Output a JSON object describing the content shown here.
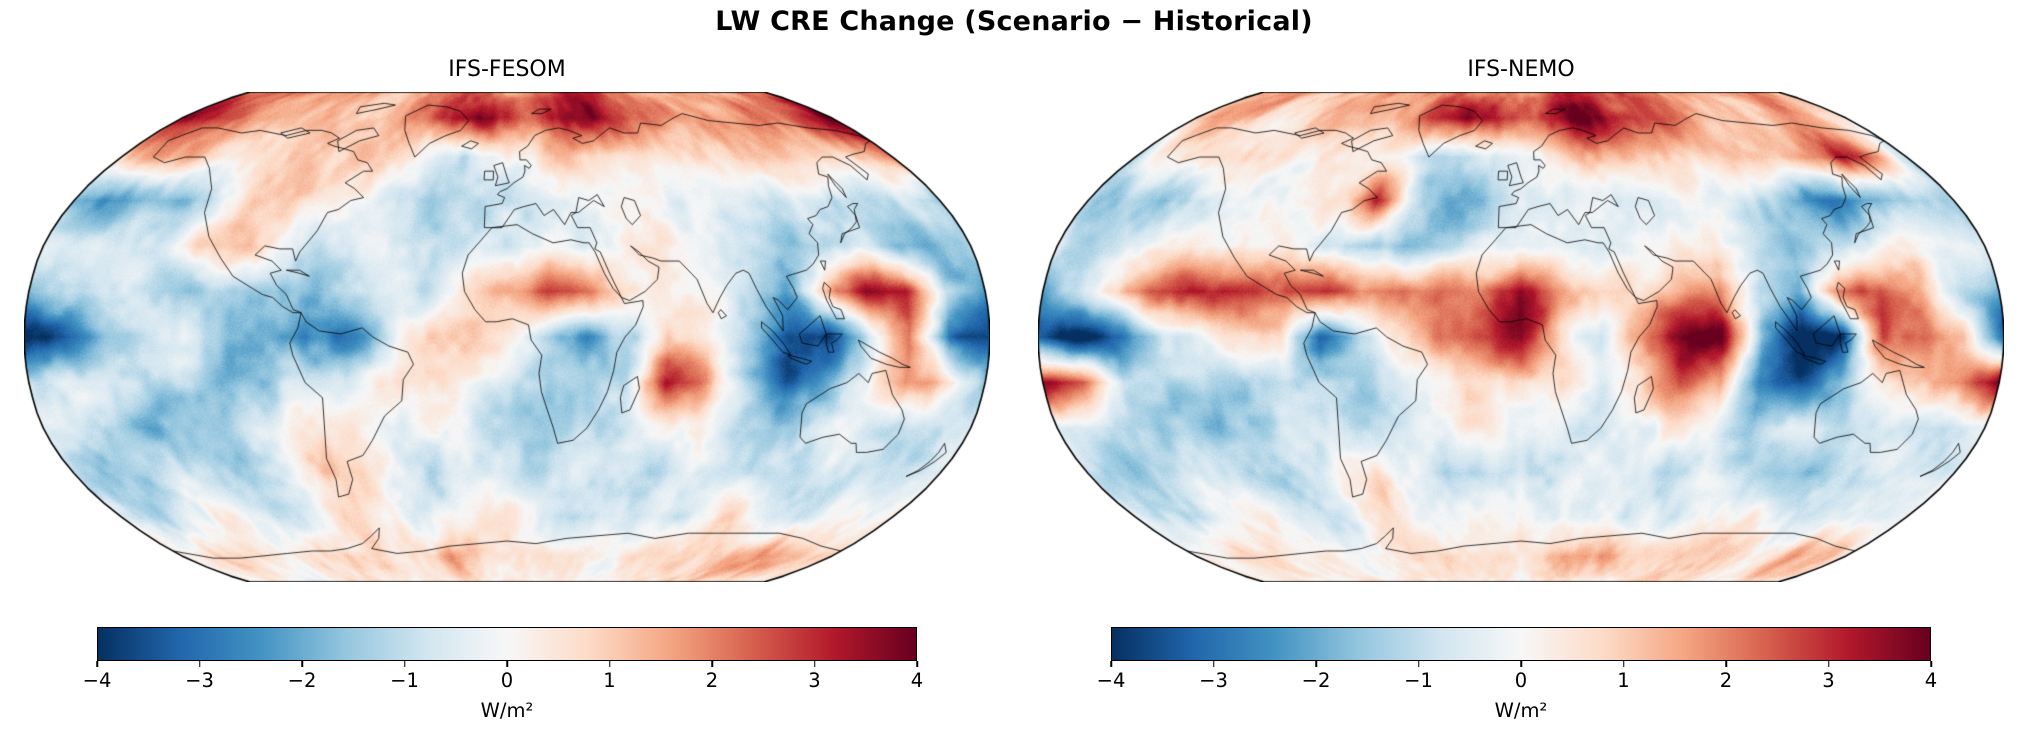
{
  "figure": {
    "title": "LW CRE Change (Scenario − Historical)",
    "panels": [
      {
        "title": "IFS-FESOM"
      },
      {
        "title": "IFS-NEMO"
      }
    ],
    "colorbar": {
      "unit": "W/m²",
      "vmin": -4,
      "vmax": 4,
      "ticks": [
        "−4",
        "−3",
        "−2",
        "−1",
        "0",
        "1",
        "2",
        "3",
        "4"
      ],
      "colormap": "RdBu_r",
      "colors": [
        "#053061",
        "#2166ac",
        "#4393c3",
        "#92c5de",
        "#d1e5f0",
        "#f7f7f7",
        "#fddbc7",
        "#f4a582",
        "#d6604d",
        "#b2182b",
        "#67001f"
      ]
    }
  },
  "chart_data": {
    "type": "heatmap",
    "subtype": "global-map",
    "projection": "robinson",
    "title": "LW CRE Change (Scenario − Historical)",
    "units": "W/m²",
    "vmin": -4,
    "vmax": 4,
    "colorbar_ticks": [
      -4,
      -3,
      -2,
      -1,
      0,
      1,
      2,
      3,
      4
    ],
    "colorbar_label": "W/m²",
    "colormap": "RdBu_r",
    "grid_lats": [
      90,
      75,
      60,
      45,
      30,
      15,
      0,
      -15,
      -30,
      -45,
      -60,
      -75,
      -90
    ],
    "grid_lons": [
      -180,
      -165,
      -150,
      -135,
      -120,
      -105,
      -90,
      -75,
      -60,
      -45,
      -30,
      -15,
      0,
      15,
      30,
      45,
      60,
      75,
      90,
      105,
      120,
      135,
      150,
      165,
      180
    ],
    "series": [
      {
        "name": "IFS-FESOM",
        "values": [
          [
            2,
            2,
            2,
            2,
            1.5,
            1.5,
            1.5,
            1.2,
            1.5,
            2,
            2.5,
            2,
            1.5,
            2,
            2.5,
            3,
            2.5,
            2,
            1.5,
            1.5,
            1.5,
            1.5,
            1.5,
            2,
            2
          ],
          [
            3.5,
            3.5,
            3,
            2,
            1.5,
            1.2,
            1,
            1,
            1.5,
            2,
            3.5,
            4,
            2.5,
            2.5,
            3.5,
            3.5,
            2.5,
            2,
            1.5,
            1.5,
            1.5,
            2,
            2,
            2.5,
            3.5
          ],
          [
            1.5,
            2,
            2,
            1,
            0.5,
            0.5,
            0.8,
            0.8,
            0.5,
            0,
            -1,
            -0.5,
            0.3,
            0.5,
            1,
            1,
            1,
            0.8,
            0.8,
            1,
            1,
            0.5,
            1,
            1.5,
            1.5
          ],
          [
            -1.5,
            -2,
            -1.5,
            -1.5,
            -0.5,
            0.8,
            0.8,
            0.5,
            -0.5,
            -1.5,
            -1.5,
            -0.8,
            -0.5,
            -0.5,
            -0.3,
            0.3,
            0.5,
            0.3,
            0.2,
            -0.5,
            -1,
            -1.5,
            -1,
            -0.5,
            -1.5
          ],
          [
            -1,
            -1,
            -0.8,
            -0.5,
            0.5,
            1,
            0.5,
            -0.5,
            -1,
            -0.8,
            -0.5,
            -0.5,
            -0.8,
            -0.5,
            -0.8,
            0.3,
            0.5,
            0.3,
            -0.5,
            -1,
            -1.5,
            -1,
            -1.5,
            -2,
            -1
          ],
          [
            -2,
            -1,
            -0.8,
            -1,
            -1.5,
            -1,
            -1.5,
            -1.5,
            -1,
            -0.5,
            -0.5,
            0.5,
            1,
            2.5,
            2,
            0.8,
            0.5,
            0.3,
            -0.5,
            -1.5,
            1,
            3.5,
            3,
            -1,
            -2
          ],
          [
            -4,
            -3.5,
            -2,
            -1,
            -0.5,
            -1,
            -1.5,
            -3,
            -2.5,
            -0.5,
            0.5,
            0.5,
            -0.5,
            -1.5,
            -2.5,
            -1,
            1.5,
            1,
            -1,
            -3.5,
            -4,
            -1,
            1.5,
            -3.5,
            -4
          ],
          [
            -1,
            -0.5,
            -1,
            -1.5,
            -1,
            -1.5,
            -1.5,
            -1,
            -0.5,
            0.5,
            0.5,
            0,
            -0.5,
            -1,
            -1.5,
            -0.5,
            3.5,
            2.5,
            -1,
            -3.5,
            -2,
            -0.5,
            2,
            1,
            -1
          ],
          [
            -0.5,
            -1,
            -1.5,
            -2,
            -1.5,
            -1,
            -0.5,
            0,
            -0.5,
            -1,
            -0.5,
            -0.3,
            -0.5,
            -1,
            -1,
            -0.5,
            0.5,
            1,
            -0.5,
            -1,
            -1,
            -0.5,
            -0.5,
            -1,
            -0.5
          ],
          [
            -1,
            -1.5,
            -1,
            -0.5,
            -1,
            -1.5,
            -0.5,
            0.8,
            0.5,
            -0.5,
            -1,
            -0.5,
            -0.5,
            -1,
            -0.5,
            -0.5,
            -1,
            -0.5,
            -1,
            -1.5,
            -1,
            -0.5,
            -1,
            -1.5,
            -1
          ],
          [
            -0.5,
            -1,
            -0.5,
            0.5,
            -0.5,
            -1,
            -0.5,
            0.5,
            0.5,
            -0.5,
            -0.5,
            0.3,
            0.5,
            -0.5,
            -1,
            -0.5,
            -0.5,
            -1,
            -0.5,
            0.5,
            -0.5,
            -1,
            -0.5,
            -0.5,
            -0.5
          ],
          [
            0.8,
            0.5,
            1,
            1.2,
            0.8,
            0.5,
            0.8,
            1,
            0.5,
            0.8,
            1.5,
            1,
            0.8,
            1,
            1.2,
            0.8,
            0.5,
            0.8,
            1,
            0.5,
            0.8,
            1,
            1.5,
            1,
            0.8
          ],
          [
            0.3,
            0.3,
            0.3,
            0.3,
            0.3,
            0.3,
            0.3,
            0.3,
            0.3,
            0.3,
            0.3,
            0.3,
            0.3,
            0.3,
            0.3,
            0.3,
            0.3,
            0.3,
            0.3,
            0.3,
            0.3,
            0.3,
            0.3,
            0.3,
            0.3
          ]
        ]
      },
      {
        "name": "IFS-NEMO",
        "values": [
          [
            1.5,
            1.5,
            1.5,
            1.2,
            1.2,
            1.2,
            1.2,
            1.2,
            1.5,
            2,
            2,
            1.8,
            1.5,
            2,
            2.5,
            3,
            2.5,
            2,
            1.8,
            1.5,
            1.5,
            1.5,
            1.5,
            1.5,
            1.5
          ],
          [
            1,
            1,
            1,
            0.8,
            0.8,
            0.8,
            1,
            1,
            1.5,
            2.5,
            4,
            3.5,
            2,
            2.5,
            3.5,
            4,
            3,
            2.5,
            2,
            1.5,
            1.5,
            1.5,
            1.5,
            1,
            1
          ],
          [
            -1,
            0.5,
            0.8,
            0.8,
            0.8,
            0.5,
            0.5,
            0.3,
            -0.5,
            -1.5,
            -1,
            -0.5,
            0,
            0.5,
            1,
            1.5,
            1.5,
            1.2,
            1,
            1.2,
            1.5,
            2,
            3,
            1.5,
            -1
          ],
          [
            -1.5,
            -1,
            -1.5,
            -1,
            -0.5,
            0.3,
            0.3,
            0.5,
            2.5,
            -1,
            -2,
            -1.5,
            -0.5,
            -0.5,
            -0.3,
            0,
            0.3,
            0.3,
            -0.5,
            -1,
            -2.5,
            -2.5,
            -2,
            -1.5,
            -1.5
          ],
          [
            -0.5,
            -1,
            -0.8,
            -0.5,
            -0.3,
            0.3,
            0.5,
            -0.5,
            -1.5,
            -2,
            -1,
            -0.5,
            -0.5,
            -0.3,
            -0.5,
            0.3,
            0.5,
            0.5,
            -0.5,
            -1.5,
            -1,
            -0.5,
            0.5,
            -0.5,
            -0.5
          ],
          [
            -2,
            -1,
            1.5,
            2.5,
            3,
            3,
            2.5,
            3,
            1.5,
            2,
            2.5,
            2,
            3.5,
            1.5,
            0.8,
            0.5,
            1.5,
            2,
            -1,
            -1.5,
            2.5,
            2.5,
            1.5,
            -1,
            -2
          ],
          [
            -3.5,
            -4,
            -3,
            -1,
            -0.5,
            0.3,
            0.5,
            -3.5,
            -1.5,
            0.5,
            2.5,
            2.5,
            3.5,
            0.5,
            -1,
            1.5,
            4,
            3.5,
            -2,
            -4,
            -4,
            2.5,
            2.5,
            1.5,
            -3.5
          ],
          [
            3.5,
            2.5,
            -0.5,
            -1,
            -1,
            -1.5,
            -1,
            -1,
            -1,
            -0.5,
            0.3,
            0.5,
            0.3,
            0.8,
            -0.5,
            0.5,
            2.5,
            2,
            -3,
            -3.5,
            -1.5,
            0.5,
            1.5,
            2,
            3.5
          ],
          [
            -0.5,
            -1,
            -1.5,
            -1,
            -1.5,
            -1,
            -0.5,
            -0.5,
            -1,
            -0.5,
            -0.3,
            0,
            -0.3,
            -0.5,
            -1,
            -0.5,
            0.5,
            0.3,
            -1.5,
            -1,
            -0.8,
            -0.5,
            -0.5,
            -1,
            -0.5
          ],
          [
            -1,
            -1.5,
            -1,
            -0.5,
            -1,
            -1.5,
            -1,
            0.5,
            0.3,
            -0.5,
            -1.5,
            -1,
            -0.5,
            -1,
            -0.5,
            -0.5,
            -1,
            -0.5,
            -1,
            -1.5,
            -2,
            -1,
            -0.5,
            -1,
            -1
          ],
          [
            -0.5,
            -0.5,
            -1,
            0.3,
            0.5,
            -0.5,
            -1,
            0.3,
            0.5,
            -0.5,
            -0.5,
            0.3,
            0.3,
            -0.5,
            -1,
            -0.5,
            -0.5,
            -1,
            -0.5,
            0.3,
            -0.5,
            -1,
            -0.5,
            -0.3,
            -0.5
          ],
          [
            0.5,
            0.5,
            0.8,
            1,
            0.5,
            0.3,
            0.5,
            0.8,
            0.3,
            0.5,
            1,
            0.8,
            0.5,
            0.8,
            1,
            1.5,
            0.5,
            0.3,
            0.5,
            0.3,
            0.5,
            0.8,
            1.2,
            0.8,
            0.5
          ],
          [
            0.3,
            0.3,
            0.3,
            0.3,
            0.3,
            0.3,
            0.3,
            0.3,
            0.3,
            0.3,
            0.3,
            0.3,
            0.3,
            0.3,
            0.3,
            0.3,
            0.3,
            0.3,
            0.3,
            0.3,
            0.3,
            0.3,
            0.3,
            0.3,
            0.3
          ]
        ]
      }
    ]
  }
}
